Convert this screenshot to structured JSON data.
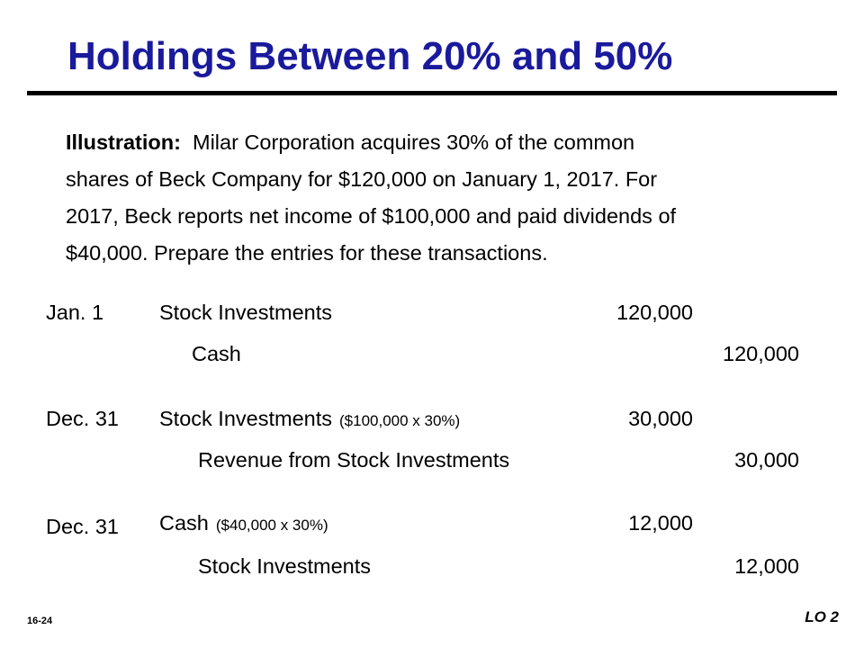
{
  "slide": {
    "title": "Holdings Between 20% and 50%",
    "illustration": {
      "lead": "Illustration:",
      "lines": [
        "Milar Corporation acquires 30% of the common",
        "shares of Beck Company for $120,000 on January 1, 2017.  For",
        "2017, Beck reports net income of $100,000 and paid dividends of",
        "$40,000.  Prepare the entries for these transactions."
      ]
    },
    "entries": [
      {
        "date": "Jan. 1",
        "debit_account": "Stock Investments",
        "debit_note": "",
        "debit_amount": "120,000",
        "credit_account": "Cash",
        "credit_amount": "120,000"
      },
      {
        "date": "Dec. 31",
        "debit_account": "Stock Investments",
        "debit_note": "($100,000 x 30%)",
        "debit_amount": "30,000",
        "credit_account": "Revenue from Stock Investments",
        "credit_amount": "30,000"
      },
      {
        "date": "Dec. 31",
        "debit_account": "Cash",
        "debit_note": "($40,000 x 30%)",
        "debit_amount": "12,000",
        "credit_account": "Stock Investments",
        "credit_amount": "12,000"
      }
    ],
    "footer": {
      "page_number": "16-24",
      "learning_objective": "LO 2"
    },
    "colors": {
      "title": "#1a1a9c",
      "text": "#000000",
      "rule": "#000000",
      "background": "#ffffff"
    }
  }
}
